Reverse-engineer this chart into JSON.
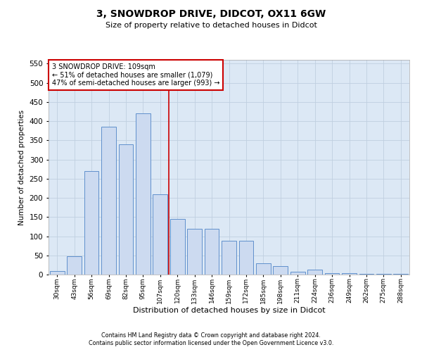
{
  "title": "3, SNOWDROP DRIVE, DIDCOT, OX11 6GW",
  "subtitle": "Size of property relative to detached houses in Didcot",
  "xlabel": "Distribution of detached houses by size in Didcot",
  "ylabel": "Number of detached properties",
  "footnote1": "Contains HM Land Registry data © Crown copyright and database right 2024.",
  "footnote2": "Contains public sector information licensed under the Open Government Licence v3.0.",
  "annotation_line1": "3 SNOWDROP DRIVE: 109sqm",
  "annotation_line2": "← 51% of detached houses are smaller (1,079)",
  "annotation_line3": "47% of semi-detached houses are larger (993) →",
  "bar_color": "#ccdaf0",
  "bar_edge_color": "#6090cc",
  "line_color": "#cc0000",
  "box_edge_color": "#cc0000",
  "grid_color": "#c0cfe0",
  "background_color": "#dce8f5",
  "categories": [
    "30sqm",
    "43sqm",
    "56sqm",
    "69sqm",
    "82sqm",
    "95sqm",
    "107sqm",
    "120sqm",
    "133sqm",
    "146sqm",
    "159sqm",
    "172sqm",
    "185sqm",
    "198sqm",
    "211sqm",
    "224sqm",
    "236sqm",
    "249sqm",
    "262sqm",
    "275sqm",
    "288sqm"
  ],
  "values": [
    10,
    48,
    270,
    385,
    340,
    420,
    210,
    145,
    120,
    120,
    88,
    88,
    30,
    22,
    8,
    12,
    3,
    3,
    2,
    1,
    2
  ],
  "ylim": [
    0,
    560
  ],
  "yticks": [
    0,
    50,
    100,
    150,
    200,
    250,
    300,
    350,
    400,
    450,
    500,
    550
  ],
  "prop_bar_idx": 6
}
